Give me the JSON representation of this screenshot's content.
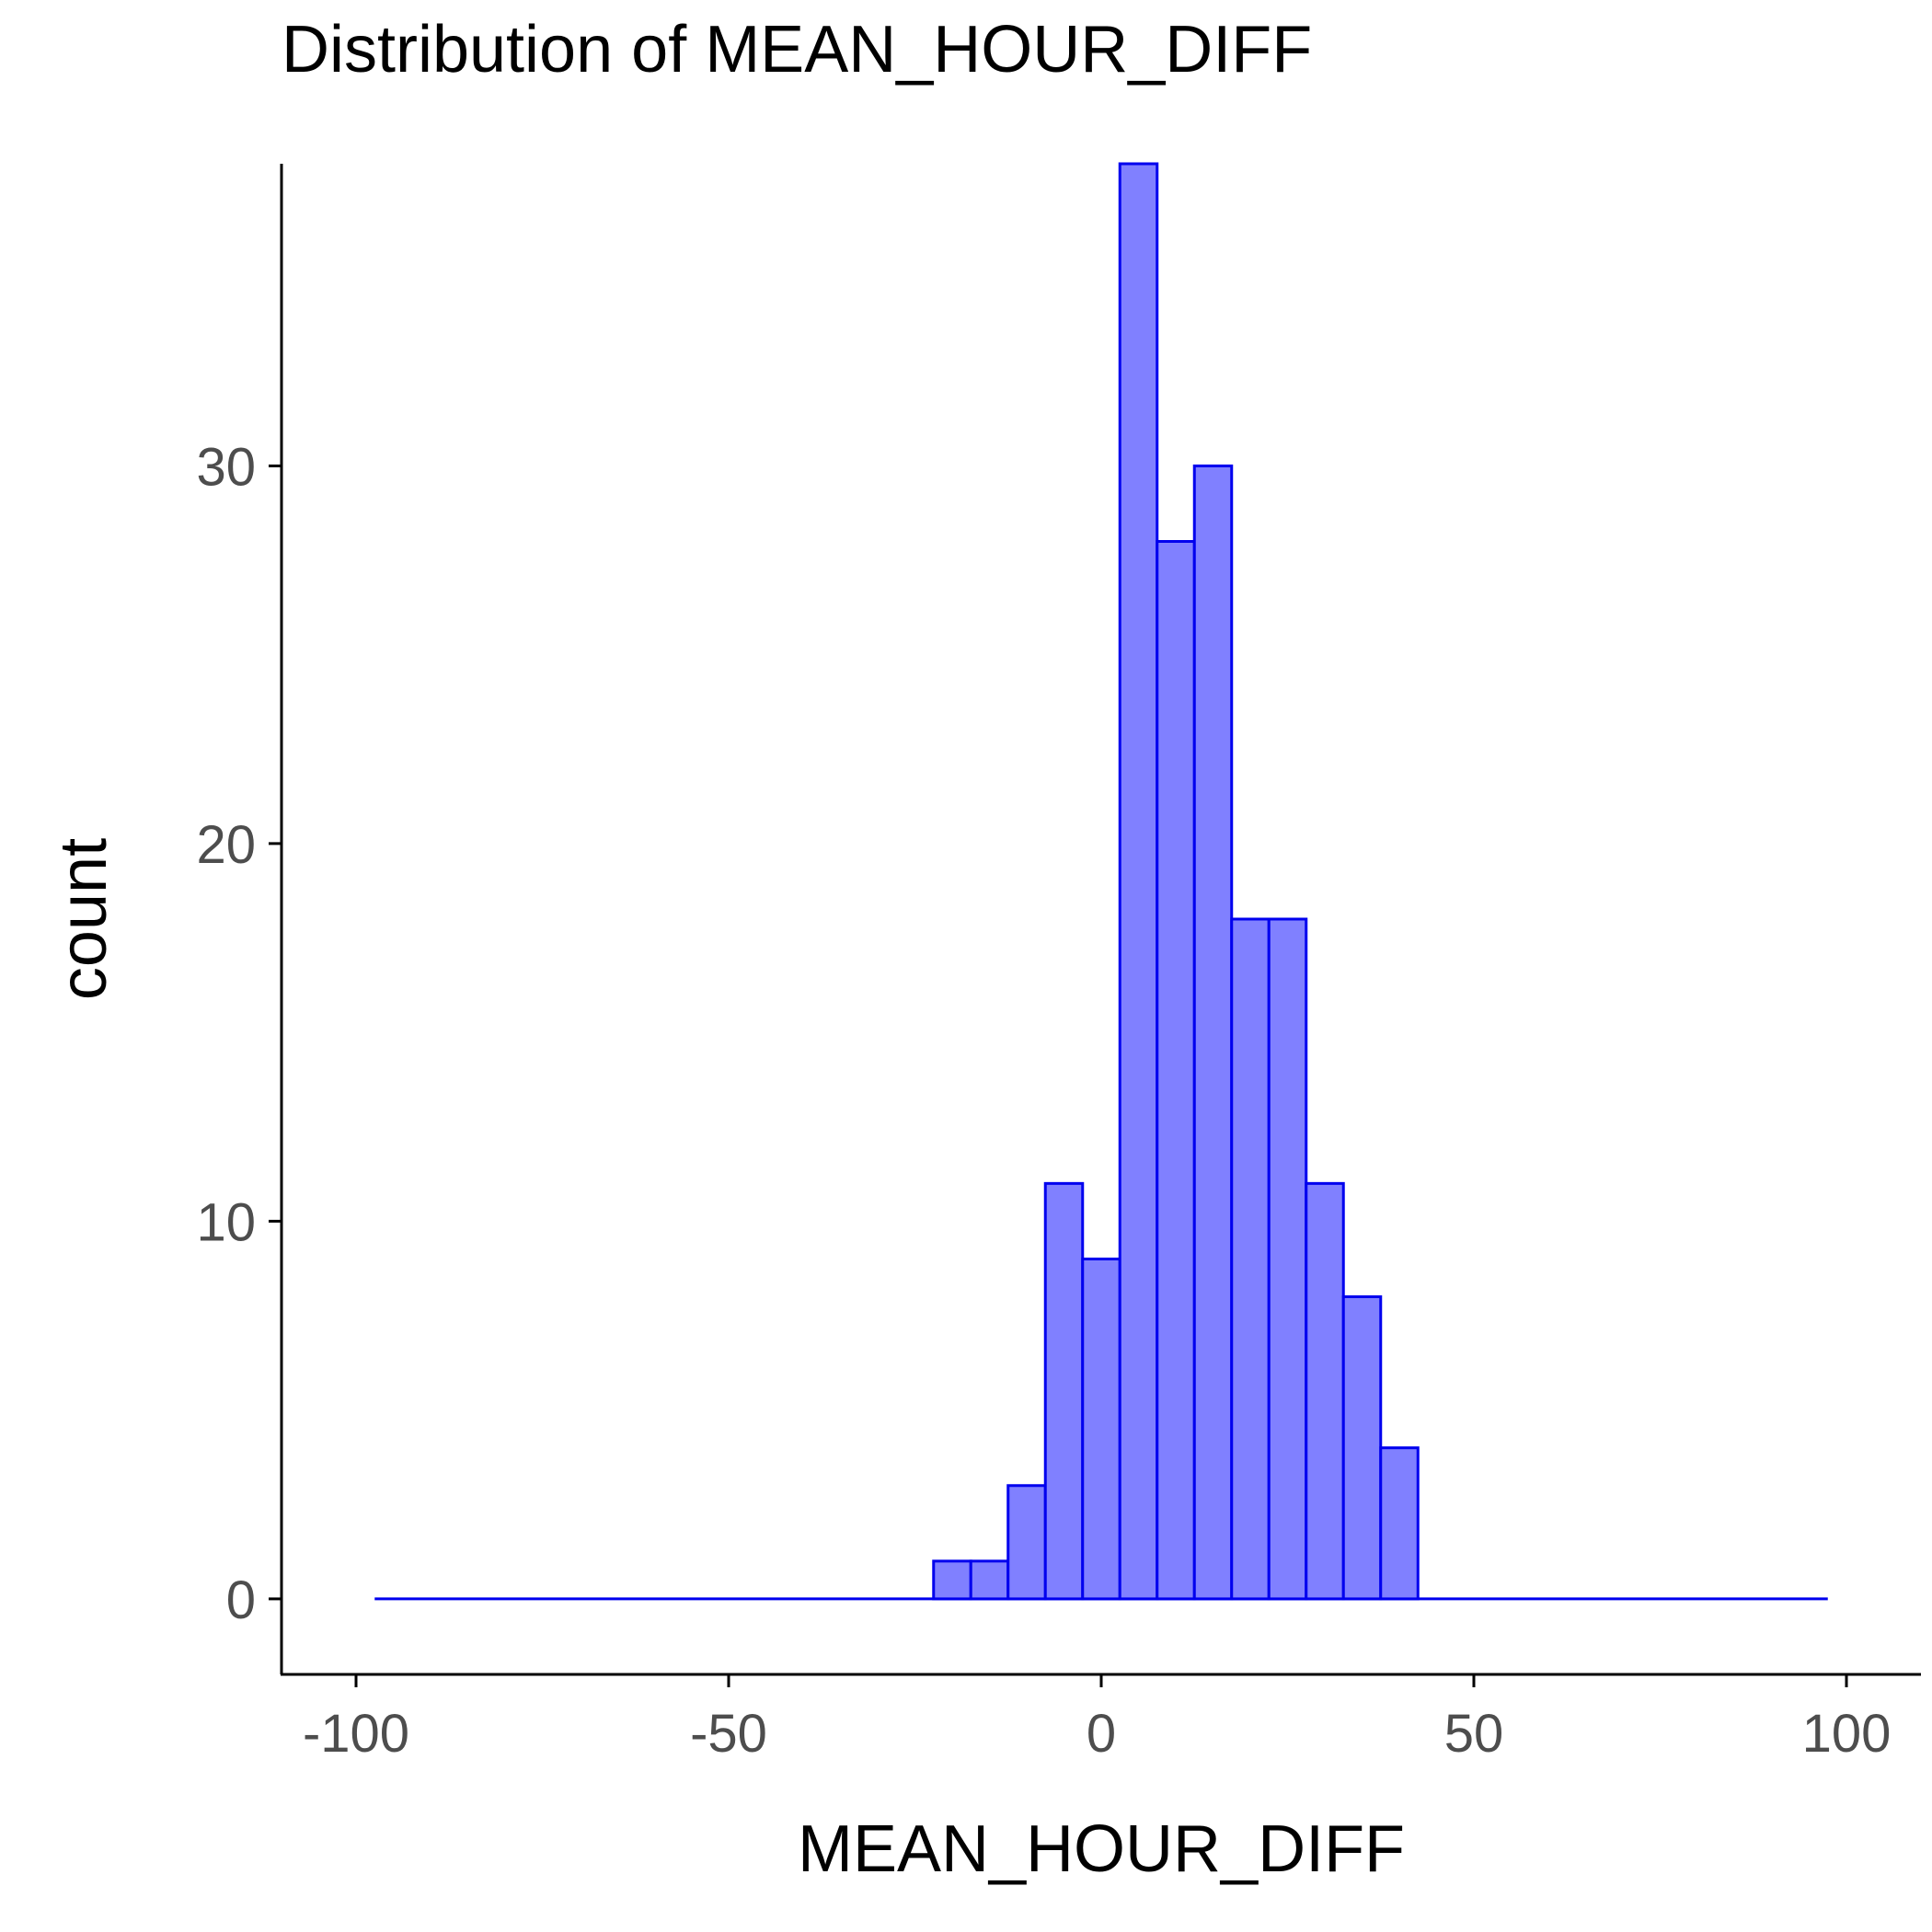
{
  "chart_data": {
    "type": "bar",
    "title": "Distribution of MEAN_HOUR_DIFF",
    "xlabel": "MEAN_HOUR_DIFF",
    "ylabel": "count",
    "xlim": [
      -110,
      110
    ],
    "ylim": [
      -2,
      38
    ],
    "x_range_drawn": [
      -97.5,
      97.5
    ],
    "bin_width": 5,
    "x_ticks": [
      -100,
      -50,
      0,
      50,
      100
    ],
    "x_tick_labels": [
      "-100",
      "-50",
      "0",
      "50",
      "100"
    ],
    "y_ticks": [
      0,
      10,
      20,
      30
    ],
    "y_tick_labels": [
      "0",
      "10",
      "20",
      "30"
    ],
    "bins": [
      {
        "start": -22.5,
        "end": -17.5,
        "count": 1
      },
      {
        "start": -17.5,
        "end": -12.5,
        "count": 1
      },
      {
        "start": -12.5,
        "end": -7.5,
        "count": 3
      },
      {
        "start": -7.5,
        "end": -2.5,
        "count": 11
      },
      {
        "start": -2.5,
        "end": 2.5,
        "count": 9
      },
      {
        "start": 2.5,
        "end": 7.5,
        "count": 38
      },
      {
        "start": 7.5,
        "end": 12.5,
        "count": 28
      },
      {
        "start": 12.5,
        "end": 17.5,
        "count": 30
      },
      {
        "start": 17.5,
        "end": 22.5,
        "count": 18
      },
      {
        "start": 22.5,
        "end": 27.5,
        "count": 18
      },
      {
        "start": 27.5,
        "end": 32.5,
        "count": 11
      },
      {
        "start": 32.5,
        "end": 37.5,
        "count": 8
      },
      {
        "start": 37.5,
        "end": 42.5,
        "count": 4
      }
    ],
    "grid": false,
    "legend": "none",
    "fill_color": "#8080ff",
    "outline_color": "#0000ee"
  }
}
